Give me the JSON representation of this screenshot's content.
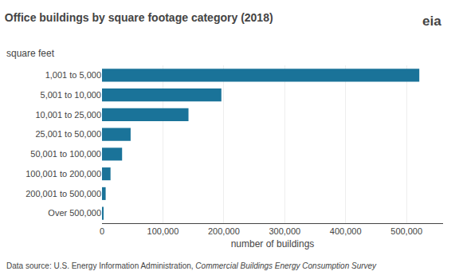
{
  "chart_data": {
    "type": "bar",
    "orientation": "horizontal",
    "title": "Office buildings by square footage category (2018)",
    "ylabel": "square feet",
    "xlabel": "number of buildings",
    "categories": [
      "1,001 to 5,000",
      "5,001 to 10,000",
      "10,001 to 25,000",
      "25,001 to 50,000",
      "50,001 to 100,000",
      "100,001 to 200,000",
      "200,001 to 500,000",
      "Over 500,000"
    ],
    "values": [
      521000,
      196000,
      142000,
      47000,
      33000,
      14000,
      6000,
      1500
    ],
    "color": "#1a7399",
    "xlim": [
      0,
      560000
    ],
    "xticks": [
      0,
      {
        "value": 100000,
        "label": "100,000"
      },
      {
        "value": 200000,
        "label": "200,000"
      },
      {
        "value": 300000,
        "label": "300,000"
      },
      {
        "value": 400000,
        "label": "400,000"
      },
      {
        "value": 500000,
        "label": "500,000"
      }
    ],
    "grid": true,
    "annotations": [
      {
        "text": "Data source: U.S. Energy Information Administration, "
      },
      {
        "text": "Commercial Buildings Energy Consumption Survey"
      },
      {
        "text": "eia"
      }
    ]
  }
}
